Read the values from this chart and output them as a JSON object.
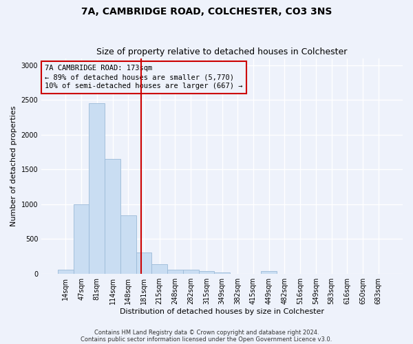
{
  "title": "7A, CAMBRIDGE ROAD, COLCHESTER, CO3 3NS",
  "subtitle": "Size of property relative to detached houses in Colchester",
  "xlabel": "Distribution of detached houses by size in Colchester",
  "ylabel": "Number of detached properties",
  "categories": [
    "14sqm",
    "47sqm",
    "81sqm",
    "114sqm",
    "148sqm",
    "181sqm",
    "215sqm",
    "248sqm",
    "282sqm",
    "315sqm",
    "349sqm",
    "382sqm",
    "415sqm",
    "449sqm",
    "482sqm",
    "516sqm",
    "549sqm",
    "583sqm",
    "616sqm",
    "650sqm",
    "683sqm"
  ],
  "values": [
    60,
    1000,
    2450,
    1650,
    840,
    300,
    140,
    55,
    55,
    35,
    20,
    0,
    0,
    35,
    0,
    0,
    0,
    0,
    0,
    0,
    0
  ],
  "bar_color": "#c9ddf2",
  "bar_edge_color": "#9bbad8",
  "vline_x": 4.82,
  "vline_color": "#cc0000",
  "annotation_line1": "7A CAMBRIDGE ROAD: 173sqm",
  "annotation_line2": "← 89% of detached houses are smaller (5,770)",
  "annotation_line3": "10% of semi-detached houses are larger (667) →",
  "annotation_box_color": "#cc0000",
  "ylim": [
    0,
    3100
  ],
  "yticks": [
    0,
    500,
    1000,
    1500,
    2000,
    2500,
    3000
  ],
  "footnote1": "Contains HM Land Registry data © Crown copyright and database right 2024.",
  "footnote2": "Contains public sector information licensed under the Open Government Licence v3.0.",
  "background_color": "#eef2fb",
  "grid_color": "#ffffff",
  "title_fontsize": 10,
  "subtitle_fontsize": 9,
  "label_fontsize": 8,
  "tick_fontsize": 7,
  "annotation_fontsize": 7.5,
  "footnote_fontsize": 6
}
